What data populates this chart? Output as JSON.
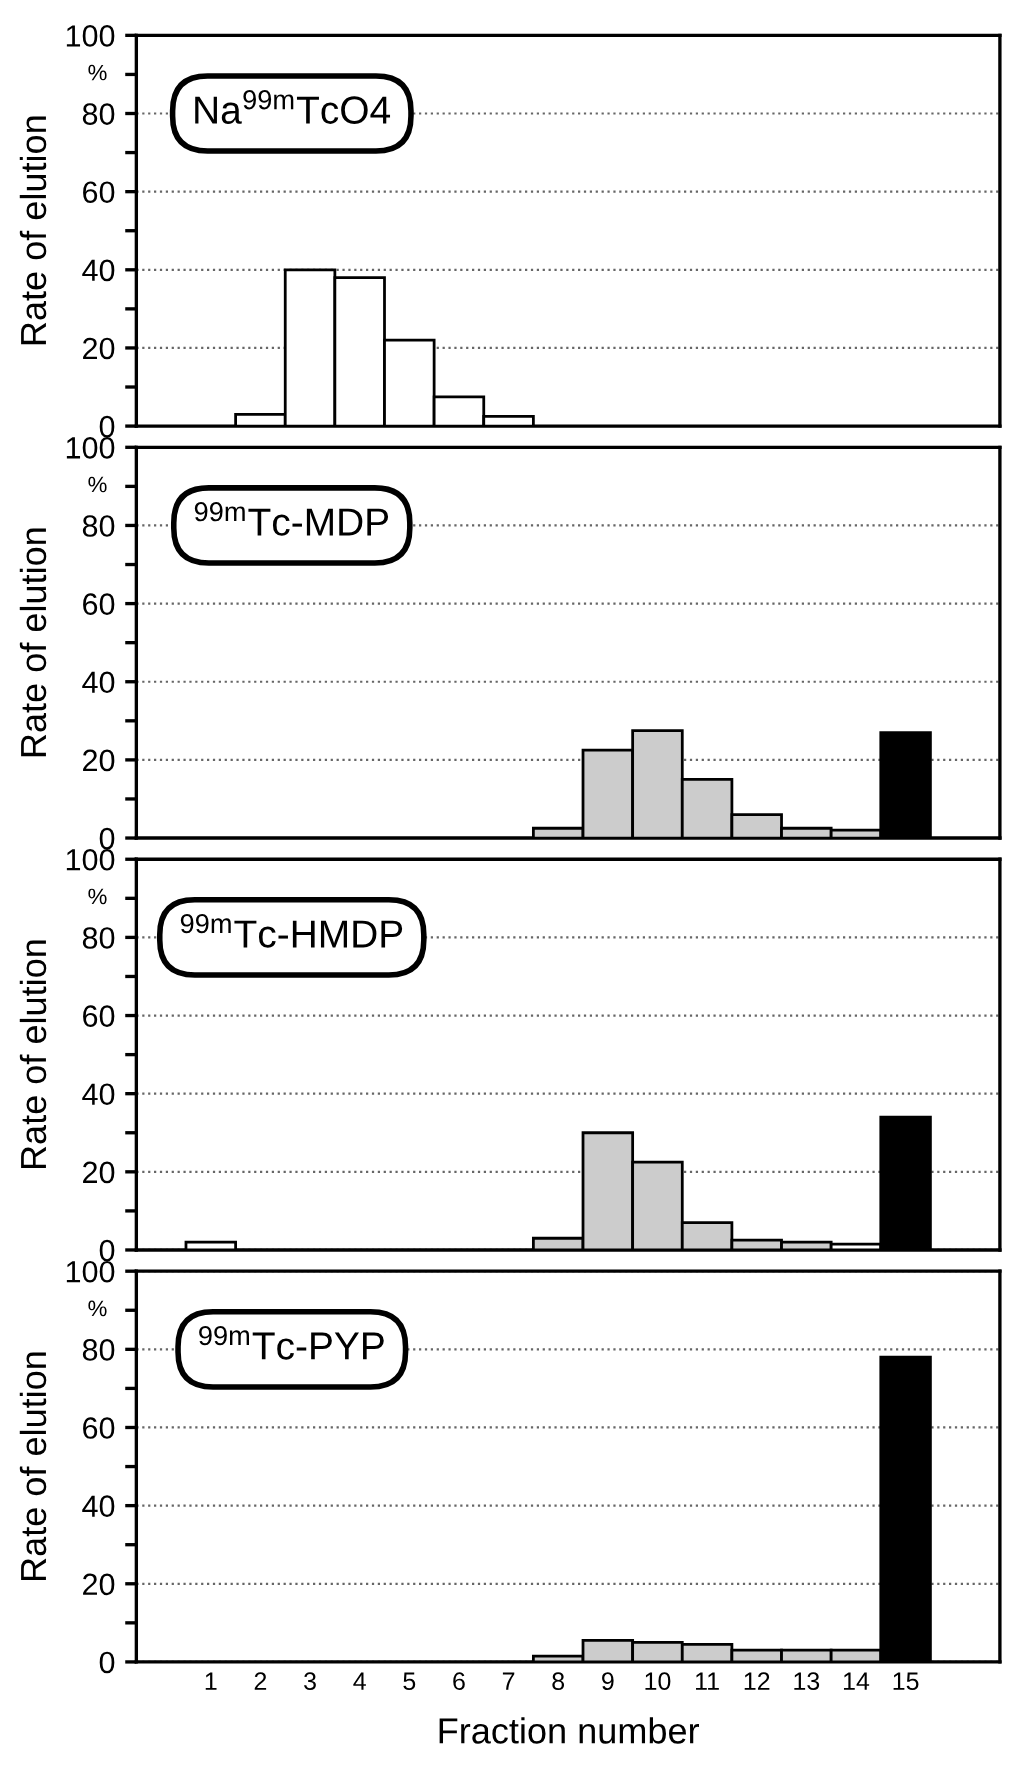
{
  "chart_data": [
    {
      "type": "bar",
      "title": "Na$^{99m}$TcO4",
      "ylabel": "Rate of elution",
      "categories": [
        "1",
        "2",
        "3",
        "4",
        "5",
        "6",
        "7",
        "8",
        "9",
        "10",
        "11",
        "12",
        "13",
        "14",
        "15"
      ],
      "values": [
        null,
        3,
        40,
        38,
        22,
        7.5,
        2.5,
        null,
        null,
        null,
        null,
        null,
        null,
        null,
        null
      ],
      "colors": [
        "#ffffff",
        "#ffffff",
        "#ffffff",
        "#ffffff",
        "#ffffff",
        "#ffffff",
        "#ffffff",
        "#ffffff",
        "#ffffff",
        "#ffffff",
        "#ffffff",
        "#ffffff",
        "#ffffff",
        "#ffffff",
        "#ffffff"
      ],
      "ylim": [
        0,
        100
      ],
      "yticks": [
        0,
        20,
        40,
        60,
        80,
        100
      ],
      "annotations": [
        "%"
      ],
      "grid": "y",
      "tick_labels": "y"
    },
    {
      "type": "bar",
      "title": "$^{99m}$Tc-MDP",
      "ylabel": "Rate of elution",
      "categories": [
        "1",
        "2",
        "3",
        "4",
        "5",
        "6",
        "7",
        "8",
        "9",
        "10",
        "11",
        "12",
        "13",
        "14",
        "15"
      ],
      "values": [
        null,
        null,
        null,
        null,
        null,
        null,
        null,
        2.5,
        22.5,
        27.5,
        15,
        6,
        2.5,
        2,
        27
      ],
      "colors": [
        "#ffffff",
        "#ffffff",
        "#ffffff",
        "#ffffff",
        "#ffffff",
        "#ffffff",
        "#ffffff",
        "#cccccc",
        "#cccccc",
        "#cccccc",
        "#cccccc",
        "#cccccc",
        "#cccccc",
        "#cccccc",
        "#000000"
      ],
      "ylim": [
        0,
        100
      ],
      "yticks": [
        0,
        20,
        40,
        60,
        80,
        100
      ],
      "annotations": [
        "%"
      ],
      "grid": "y",
      "tick_labels": "y"
    },
    {
      "type": "bar",
      "title": "$^{99m}$Tc-HMDP",
      "ylabel": "Rate of elution",
      "categories": [
        "1",
        "2",
        "3",
        "4",
        "5",
        "6",
        "7",
        "8",
        "9",
        "10",
        "11",
        "12",
        "13",
        "14",
        "15"
      ],
      "values": [
        2,
        null,
        null,
        null,
        null,
        null,
        null,
        3,
        30,
        22.5,
        7,
        2.5,
        2,
        1.5,
        34
      ],
      "colors": [
        "#ffffff",
        "#ffffff",
        "#ffffff",
        "#ffffff",
        "#ffffff",
        "#ffffff",
        "#ffffff",
        "#cccccc",
        "#cccccc",
        "#cccccc",
        "#cccccc",
        "#cccccc",
        "#cccccc",
        "#ffffff",
        "#000000"
      ],
      "ylim": [
        0,
        100
      ],
      "yticks": [
        0,
        20,
        40,
        60,
        80,
        100
      ],
      "annotations": [
        "%"
      ],
      "grid": "y",
      "tick_labels": "y"
    },
    {
      "type": "bar",
      "title": "$^{99m}$Tc-PYP",
      "ylabel": "Rate of elution",
      "xlabel": "Fraction number",
      "categories": [
        "1",
        "2",
        "3",
        "4",
        "5",
        "6",
        "7",
        "8",
        "9",
        "10",
        "11",
        "12",
        "13",
        "14",
        "15"
      ],
      "values": [
        null,
        null,
        null,
        null,
        null,
        null,
        null,
        1.5,
        5.5,
        5,
        4.5,
        3,
        3,
        3,
        78
      ],
      "colors": [
        "#ffffff",
        "#ffffff",
        "#ffffff",
        "#ffffff",
        "#ffffff",
        "#ffffff",
        "#ffffff",
        "#cccccc",
        "#cccccc",
        "#cccccc",
        "#cccccc",
        "#cccccc",
        "#cccccc",
        "#cccccc",
        "#000000"
      ],
      "ylim": [
        0,
        100
      ],
      "yticks": [
        0,
        20,
        40,
        60,
        80,
        100
      ],
      "annotations": [
        "%"
      ],
      "grid": "y"
    }
  ]
}
